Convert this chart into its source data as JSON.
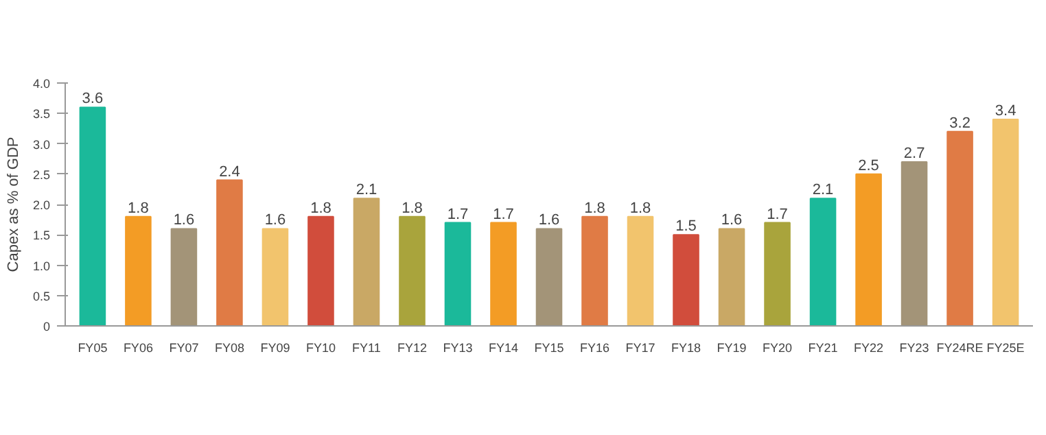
{
  "chart_data": {
    "type": "bar",
    "ylabel": "Capex as % of GDP",
    "categories": [
      "FY05",
      "FY06",
      "FY07",
      "FY08",
      "FY09",
      "FY10",
      "FY11",
      "FY12",
      "FY13",
      "FY14",
      "FY15",
      "FY16",
      "FY17",
      "FY18",
      "FY19",
      "FY20",
      "FY21",
      "FY22",
      "FY23",
      "FY24RE",
      "FY25E"
    ],
    "values": [
      3.6,
      1.8,
      1.6,
      2.4,
      1.6,
      1.8,
      2.1,
      1.8,
      1.7,
      1.7,
      1.6,
      1.8,
      1.8,
      1.5,
      1.6,
      1.7,
      2.1,
      2.5,
      2.7,
      3.2,
      3.4
    ],
    "colors": [
      "#1bb99a",
      "#f39c25",
      "#a39478",
      "#e07b45",
      "#f2c46d",
      "#d14d3c",
      "#c9a865",
      "#a9a43c",
      "#1bb99a",
      "#f39c25",
      "#a39478",
      "#e07b45",
      "#f2c46d",
      "#d14d3c",
      "#c9a865",
      "#a9a43c",
      "#1bb99a",
      "#f39c25",
      "#a39478",
      "#e07b45",
      "#f2c46d"
    ],
    "ylim": [
      0,
      4
    ],
    "yticks": [
      0,
      {
        "value": 0.5,
        "label": "0.5"
      },
      {
        "value": 1,
        "label": "1.0"
      },
      {
        "value": 1.5,
        "label": "1.5"
      },
      {
        "value": 2,
        "label": "2.0"
      },
      {
        "value": 2.5,
        "label": "2.5"
      },
      {
        "value": 3,
        "label": "3.0"
      },
      {
        "value": 3.5,
        "label": "3.5"
      },
      {
        "value": 4,
        "label": "4.0"
      }
    ],
    "data_labels": true,
    "grid": false
  }
}
